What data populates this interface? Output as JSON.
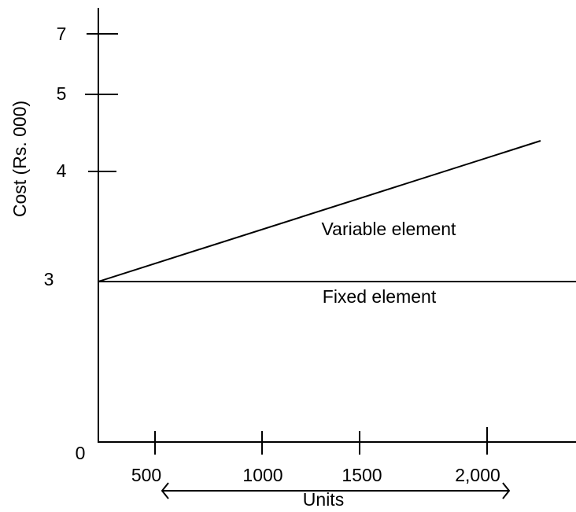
{
  "y_axis": {
    "label": "Cost (Rs. 000)",
    "ticks": [
      "7",
      "5",
      "4",
      "3"
    ]
  },
  "origin": "0",
  "x_axis": {
    "label": "Units",
    "ticks": [
      "500",
      "1000",
      "1500",
      "2,000"
    ]
  },
  "lines": {
    "variable": "Variable element",
    "fixed": "Fixed element"
  }
}
